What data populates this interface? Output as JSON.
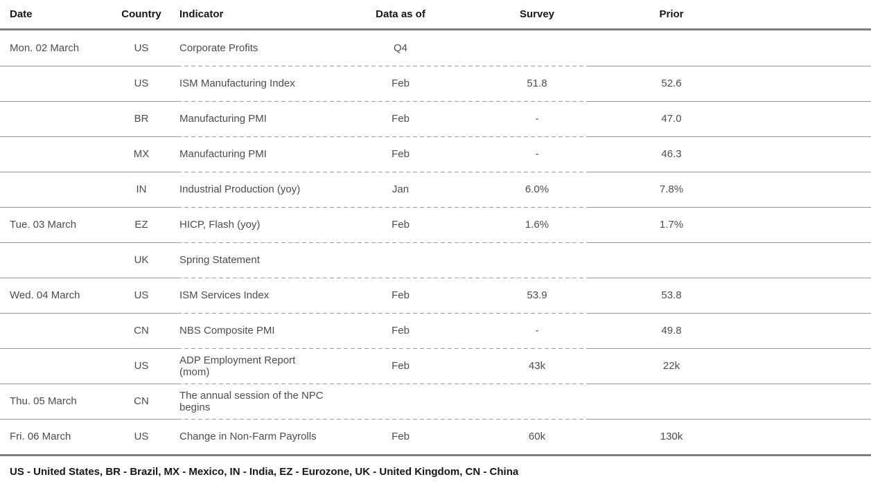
{
  "table": {
    "columns": [
      "Date",
      "Country",
      "Indicator",
      "Data as of",
      "Survey",
      "Prior"
    ],
    "rows": [
      {
        "date": "Mon. 02 March",
        "country": "US",
        "indicator": "Corporate Profits",
        "data_as_of": "Q4",
        "survey": "",
        "prior": ""
      },
      {
        "date": "",
        "country": "US",
        "indicator": "ISM Manufacturing Index",
        "data_as_of": "Feb",
        "survey": "51.8",
        "prior": "52.6"
      },
      {
        "date": "",
        "country": "BR",
        "indicator": "Manufacturing PMI",
        "data_as_of": "Feb",
        "survey": "-",
        "prior": "47.0"
      },
      {
        "date": "",
        "country": "MX",
        "indicator": "Manufacturing PMI",
        "data_as_of": "Feb",
        "survey": "-",
        "prior": "46.3"
      },
      {
        "date": "",
        "country": "IN",
        "indicator": "Industrial Production (yoy)",
        "data_as_of": "Jan",
        "survey": "6.0%",
        "prior": "7.8%"
      },
      {
        "date": "Tue. 03 March",
        "country": "EZ",
        "indicator": "HICP, Flash (yoy)",
        "data_as_of": "Feb",
        "survey": "1.6%",
        "prior": "1.7%"
      },
      {
        "date": "",
        "country": "UK",
        "indicator": "Spring Statement",
        "data_as_of": "",
        "survey": "",
        "prior": ""
      },
      {
        "date": "Wed. 04 March",
        "country": "US",
        "indicator": "ISM Services Index",
        "data_as_of": "Feb",
        "survey": "53.9",
        "prior": "53.8"
      },
      {
        "date": "",
        "country": "CN",
        "indicator": "NBS Composite PMI",
        "data_as_of": "Feb",
        "survey": "-",
        "prior": "49.8"
      },
      {
        "date": "",
        "country": "US",
        "indicator": "ADP Employment Report\n(mom)",
        "data_as_of": "Feb",
        "survey": "43k",
        "prior": "22k"
      },
      {
        "date": "Thu. 05 March",
        "country": "CN",
        "indicator": "The annual session of the NPC\nbegins",
        "data_as_of": "",
        "survey": "",
        "prior": ""
      },
      {
        "date": "Fri. 06 March",
        "country": "US",
        "indicator": "Change in Non-Farm Payrolls",
        "data_as_of": "Feb",
        "survey": "60k",
        "prior": "130k"
      }
    ],
    "legend": "US - United States, BR - Brazil, MX - Mexico, IN - India, EZ - Eurozone, UK - United Kingdom, CN - China"
  },
  "colors": {
    "header_text": "#161616",
    "body_text": "#4d4d4d",
    "thick_rule": "#7d7d7d",
    "separator": "#979797",
    "background": "#ffffff"
  }
}
